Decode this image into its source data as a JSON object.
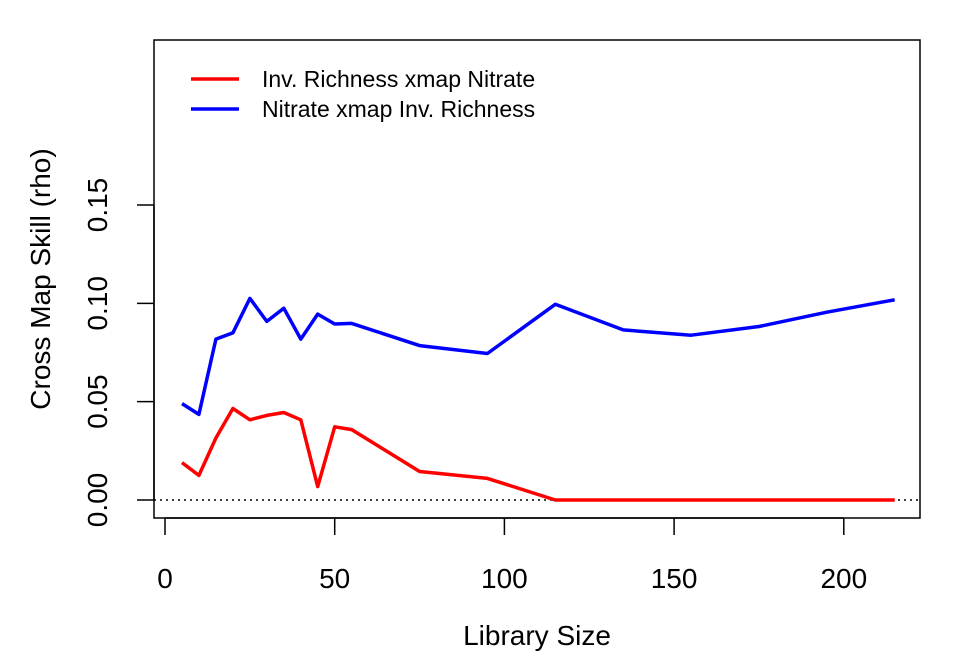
{
  "chart_data": {
    "type": "line",
    "title": "",
    "xlabel": "Library Size",
    "ylabel": "Cross Map Skill (rho)",
    "xlim": [
      0,
      215
    ],
    "ylim": [
      0,
      0.15
    ],
    "x_ticks": [
      0,
      50,
      100,
      150,
      200
    ],
    "x_tick_labels": [
      "0",
      "50",
      "100",
      "150",
      "200"
    ],
    "y_ticks": [
      0,
      0.05,
      0.1,
      0.15
    ],
    "y_tick_labels": [
      "0.00",
      "0.05",
      "0.10",
      "0.15"
    ],
    "grid": false,
    "legend_position": "top-left",
    "reference_line": {
      "y": 0,
      "style": "dotted",
      "color": "#000000"
    },
    "series": [
      {
        "name": "Inv. Richness xmap Nitrate",
        "color": "#ff0000",
        "x": [
          5,
          10,
          15,
          20,
          25,
          30,
          35,
          40,
          45,
          50,
          55,
          75,
          95,
          115,
          135,
          155,
          175,
          195,
          215
        ],
        "y": [
          0.019,
          0.0125,
          0.0315,
          0.0465,
          0.0408,
          0.043,
          0.0445,
          0.0408,
          0.0068,
          0.0372,
          0.0358,
          0.0145,
          0.011,
          0.0,
          0.0,
          0.0,
          0.0,
          0.0,
          0.0
        ]
      },
      {
        "name": "Nitrate xmap Inv. Richness",
        "color": "#0000ff",
        "x": [
          5,
          10,
          15,
          20,
          25,
          30,
          35,
          40,
          45,
          50,
          55,
          75,
          95,
          115,
          135,
          155,
          175,
          195,
          215
        ],
        "y": [
          0.049,
          0.0435,
          0.0818,
          0.085,
          0.1025,
          0.0908,
          0.0975,
          0.0818,
          0.0945,
          0.0895,
          0.0898,
          0.0785,
          0.0745,
          0.0995,
          0.0865,
          0.0838,
          0.0882,
          0.0955,
          0.1018
        ]
      }
    ]
  }
}
